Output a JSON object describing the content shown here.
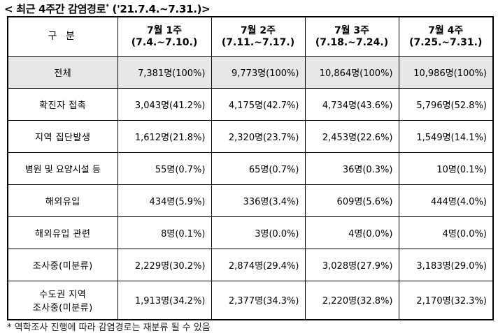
{
  "title": {
    "prefix": "< 최근 4주간 감염경로",
    "superscript": "*",
    "suffix": "('21.7.4.~7.31.)>"
  },
  "table": {
    "header": {
      "category": "구  분",
      "weeks": [
        {
          "line1": "7월 1주",
          "line2": "(7.4.~7.10.)"
        },
        {
          "line1": "7월 2주",
          "line2": "(7.11.~7.17.)"
        },
        {
          "line1": "7월 3주",
          "line2": "(7.18.~7.24.)"
        },
        {
          "line1": "7월 4주",
          "line2": "(7.25.~7.31.)"
        }
      ]
    },
    "rows": [
      {
        "label": "전체",
        "cells": [
          "7,381명(100%)",
          "9,773명(100%)",
          "10,864명(100%)",
          "10,986명(100%)"
        ]
      },
      {
        "label": "확진자 접촉",
        "cells": [
          "3,043명(41.2%)",
          "4,175명(42.7%)",
          "4,734명(43.6%)",
          "5,796명(52.8%)"
        ]
      },
      {
        "label": "지역 집단발생",
        "cells": [
          "1,612명(21.8%)",
          "2,320명(23.7%)",
          "2,453명(22.6%)",
          "1,549명(14.1%)"
        ]
      },
      {
        "label": "병원 및 요양시설 등",
        "cells": [
          "55명(0.7%)",
          "65명(0.7%)",
          "36명(0.3%)",
          "10명(0.1%)"
        ]
      },
      {
        "label": "해외유입",
        "cells": [
          "434명(5.9%)",
          "336명(3.4%)",
          "609명(5.6%)",
          "444명(4.0%)"
        ]
      },
      {
        "label": "해외유입 관련",
        "cells": [
          "8명(0.1%)",
          "3명(0.0%)",
          "4명(0.0%)",
          "4명(0.0%)"
        ]
      },
      {
        "label": "조사중(미분류)",
        "cells": [
          "2,229명(30.2%)",
          "2,874명(29.4%)",
          "3,028명(27.9%)",
          "3,183명(29.0%)"
        ]
      },
      {
        "label_line1": "수도권 지역",
        "label_line2": "조사중(미분류)",
        "cells": [
          "1,913명(34.2%)",
          "2,377명(34.3%)",
          "2,220명(32.8%)",
          "2,170명(32.3%)"
        ]
      }
    ]
  },
  "footnote": "* 역학조사 진행에 따라 감염경로는 재분류 될 수 있음"
}
